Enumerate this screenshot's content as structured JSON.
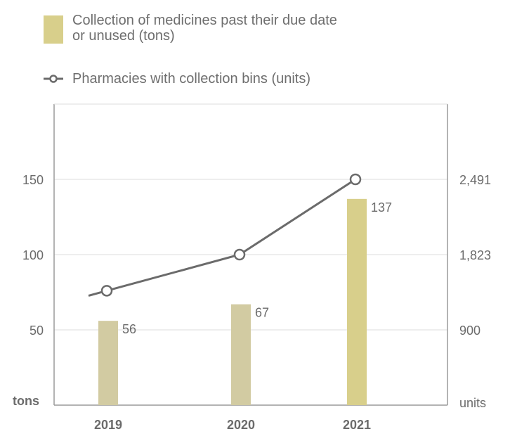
{
  "legend": {
    "bar_label": "Collection of medicines past their due date or unused (tons)",
    "bar_label_line1": "Collection of medicines past their due date",
    "bar_label_line2": "or unused (tons)",
    "line_label": "Pharmacies with collection bins (units)"
  },
  "chart_data": {
    "type": "bar",
    "categories": [
      "2019",
      "2020",
      "2021"
    ],
    "series": [
      {
        "name": "Collection of medicines past their due date or unused (tons)",
        "type": "bar",
        "axis": "left",
        "values": [
          56,
          67,
          137
        ],
        "color": "#d2cba2",
        "highlight_color": "#d8cf8b"
      },
      {
        "name": "Pharmacies with collection bins (units)",
        "type": "line",
        "axis": "right",
        "values": [
          1380,
          1823,
          2491
        ],
        "color": "#6b6b6b"
      }
    ],
    "left_axis": {
      "label": "tons",
      "ticks": [
        "50",
        "100",
        "150"
      ],
      "tick_values": [
        50,
        100,
        150
      ],
      "ylim": [
        0,
        200
      ]
    },
    "right_axis": {
      "label": "units",
      "ticks": [
        "900",
        "1,823",
        "2,491"
      ]
    },
    "data_labels": [
      "56",
      "67",
      "137"
    ],
    "grid": true
  },
  "colors": {
    "axis": "#9a9a9a",
    "grid": "#dcdcdc",
    "text": "#6b6b6b"
  }
}
